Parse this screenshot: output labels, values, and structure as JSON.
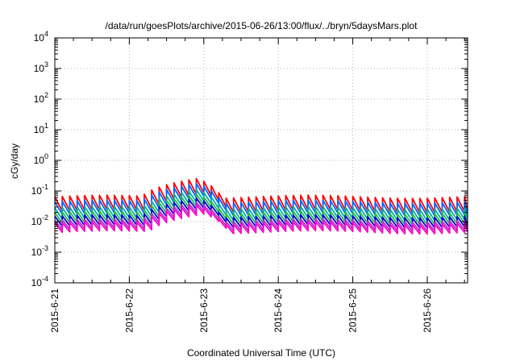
{
  "chart_data": {
    "type": "line",
    "title": "/data/run/goesPlots/archive/2015-06-26/13:00/flux/../bryn/5daysMars.plot",
    "xlabel": "Coordinated Universal Time (UTC)",
    "ylabel": "cGy/day",
    "yscale": "log",
    "ylim": [
      0.0001,
      10000
    ],
    "xlim": [
      "2015-06-21",
      "2015-06-26 13:00"
    ],
    "grid": true,
    "x_ticks": [
      "2015-6-21",
      "2015-6-22",
      "2015-6-23",
      "2015-6-24",
      "2015-6-25",
      "2015-6-26"
    ],
    "y_ticks": [
      {
        "base": "10",
        "exp": "-4"
      },
      {
        "base": "10",
        "exp": "-3"
      },
      {
        "base": "10",
        "exp": "-2"
      },
      {
        "base": "10",
        "exp": "-1"
      },
      {
        "base": "10",
        "exp": "0"
      },
      {
        "base": "10",
        "exp": "1"
      },
      {
        "base": "10",
        "exp": "2"
      },
      {
        "base": "10",
        "exp": "3"
      },
      {
        "base": "10",
        "exp": "4"
      }
    ],
    "sawtooth_period_hours": 2.4,
    "series": [
      {
        "color": "#ff0000",
        "peak": 0.065,
        "trough": 0.022
      },
      {
        "color": "#0066ff",
        "peak": 0.045,
        "trough": 0.017
      },
      {
        "color": "#00aaaa",
        "peak": 0.028,
        "trough": 0.012
      },
      {
        "color": "#22bb44",
        "peak": 0.02,
        "trough": 0.009
      },
      {
        "color": "#0000cc",
        "peak": 0.015,
        "trough": 0.007
      },
      {
        "color": "#aa33cc",
        "peak": 0.011,
        "trough": 0.0055
      },
      {
        "color": "#ff00cc",
        "peak": 0.009,
        "trough": 0.0045
      }
    ],
    "event": {
      "start": "2015-06-22 04:00",
      "peak_time": "2015-06-22 22:00",
      "end": "2015-06-23 06:00",
      "max_factor": 4.5
    }
  }
}
